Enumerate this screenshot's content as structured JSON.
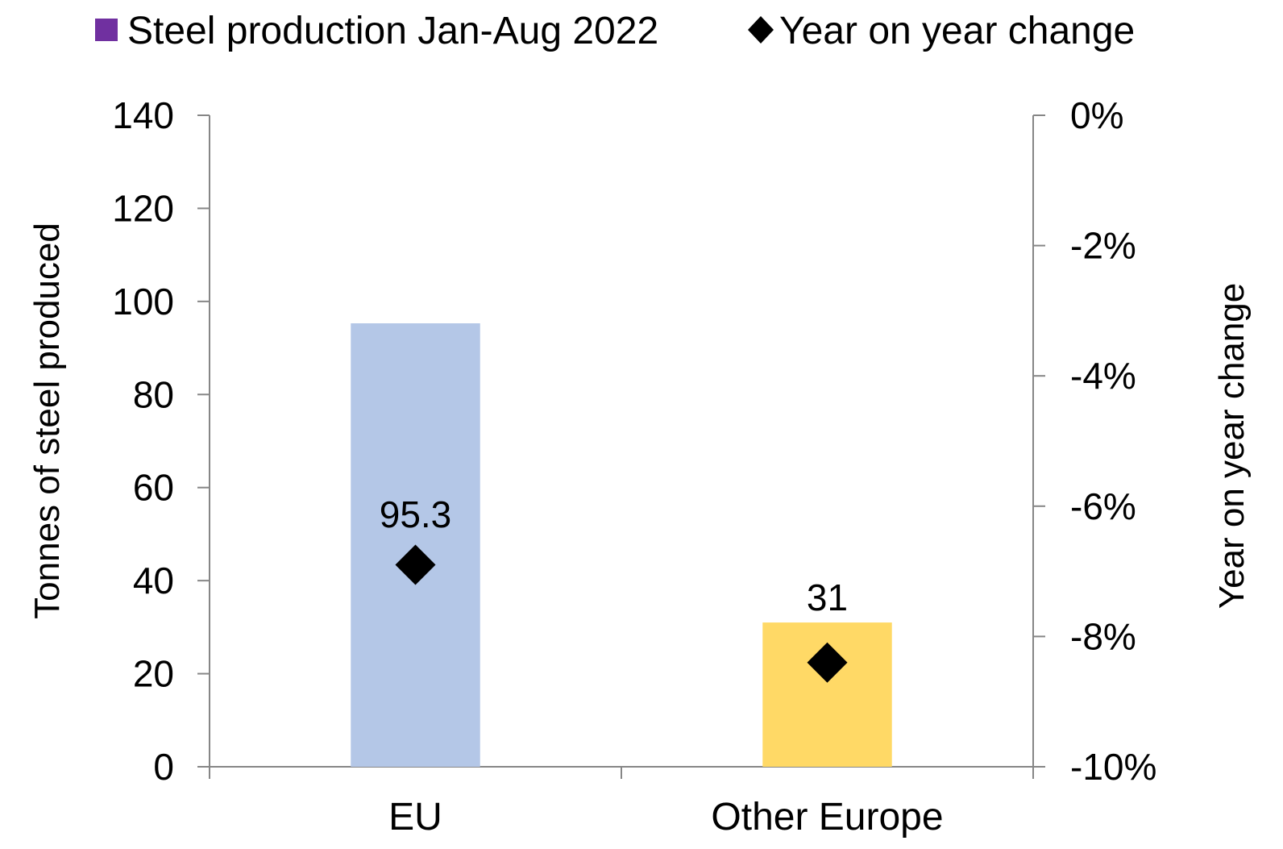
{
  "chart_data": {
    "type": "bar",
    "categories": [
      "EU",
      "Other Europe"
    ],
    "series": [
      {
        "name": "Steel production Jan-Aug 2022",
        "kind": "bar",
        "axis": "left",
        "values": [
          95.3,
          31
        ],
        "data_labels": [
          "95.3",
          "31"
        ],
        "colors": [
          "#b4c7e7",
          "#ffd966"
        ]
      },
      {
        "name": "Year on year change",
        "kind": "marker",
        "marker": "diamond",
        "axis": "right",
        "values": [
          -6.9,
          -8.4
        ],
        "color": "#000000"
      }
    ],
    "legend": {
      "placement": "top",
      "swatch_color": "#7030a0",
      "items": [
        "Steel production Jan-Aug 2022",
        "Year on year change"
      ]
    },
    "y_left": {
      "label": "Tonnes of steel produced",
      "ylim": [
        0,
        140
      ],
      "ticks": [
        0,
        20,
        40,
        60,
        80,
        100,
        120,
        140
      ],
      "tick_labels": [
        "0",
        "20",
        "40",
        "60",
        "80",
        "100",
        "120",
        "140"
      ]
    },
    "y_right": {
      "label": "Year on year change",
      "ylim": [
        -10,
        0
      ],
      "unit": "%",
      "ticks": [
        -10,
        -8,
        -6,
        -4,
        -2,
        0
      ],
      "tick_labels": [
        "-10%",
        "-8%",
        "-6%",
        "-4%",
        "-2%",
        "0%"
      ]
    },
    "xlabel": "",
    "grid": false
  }
}
